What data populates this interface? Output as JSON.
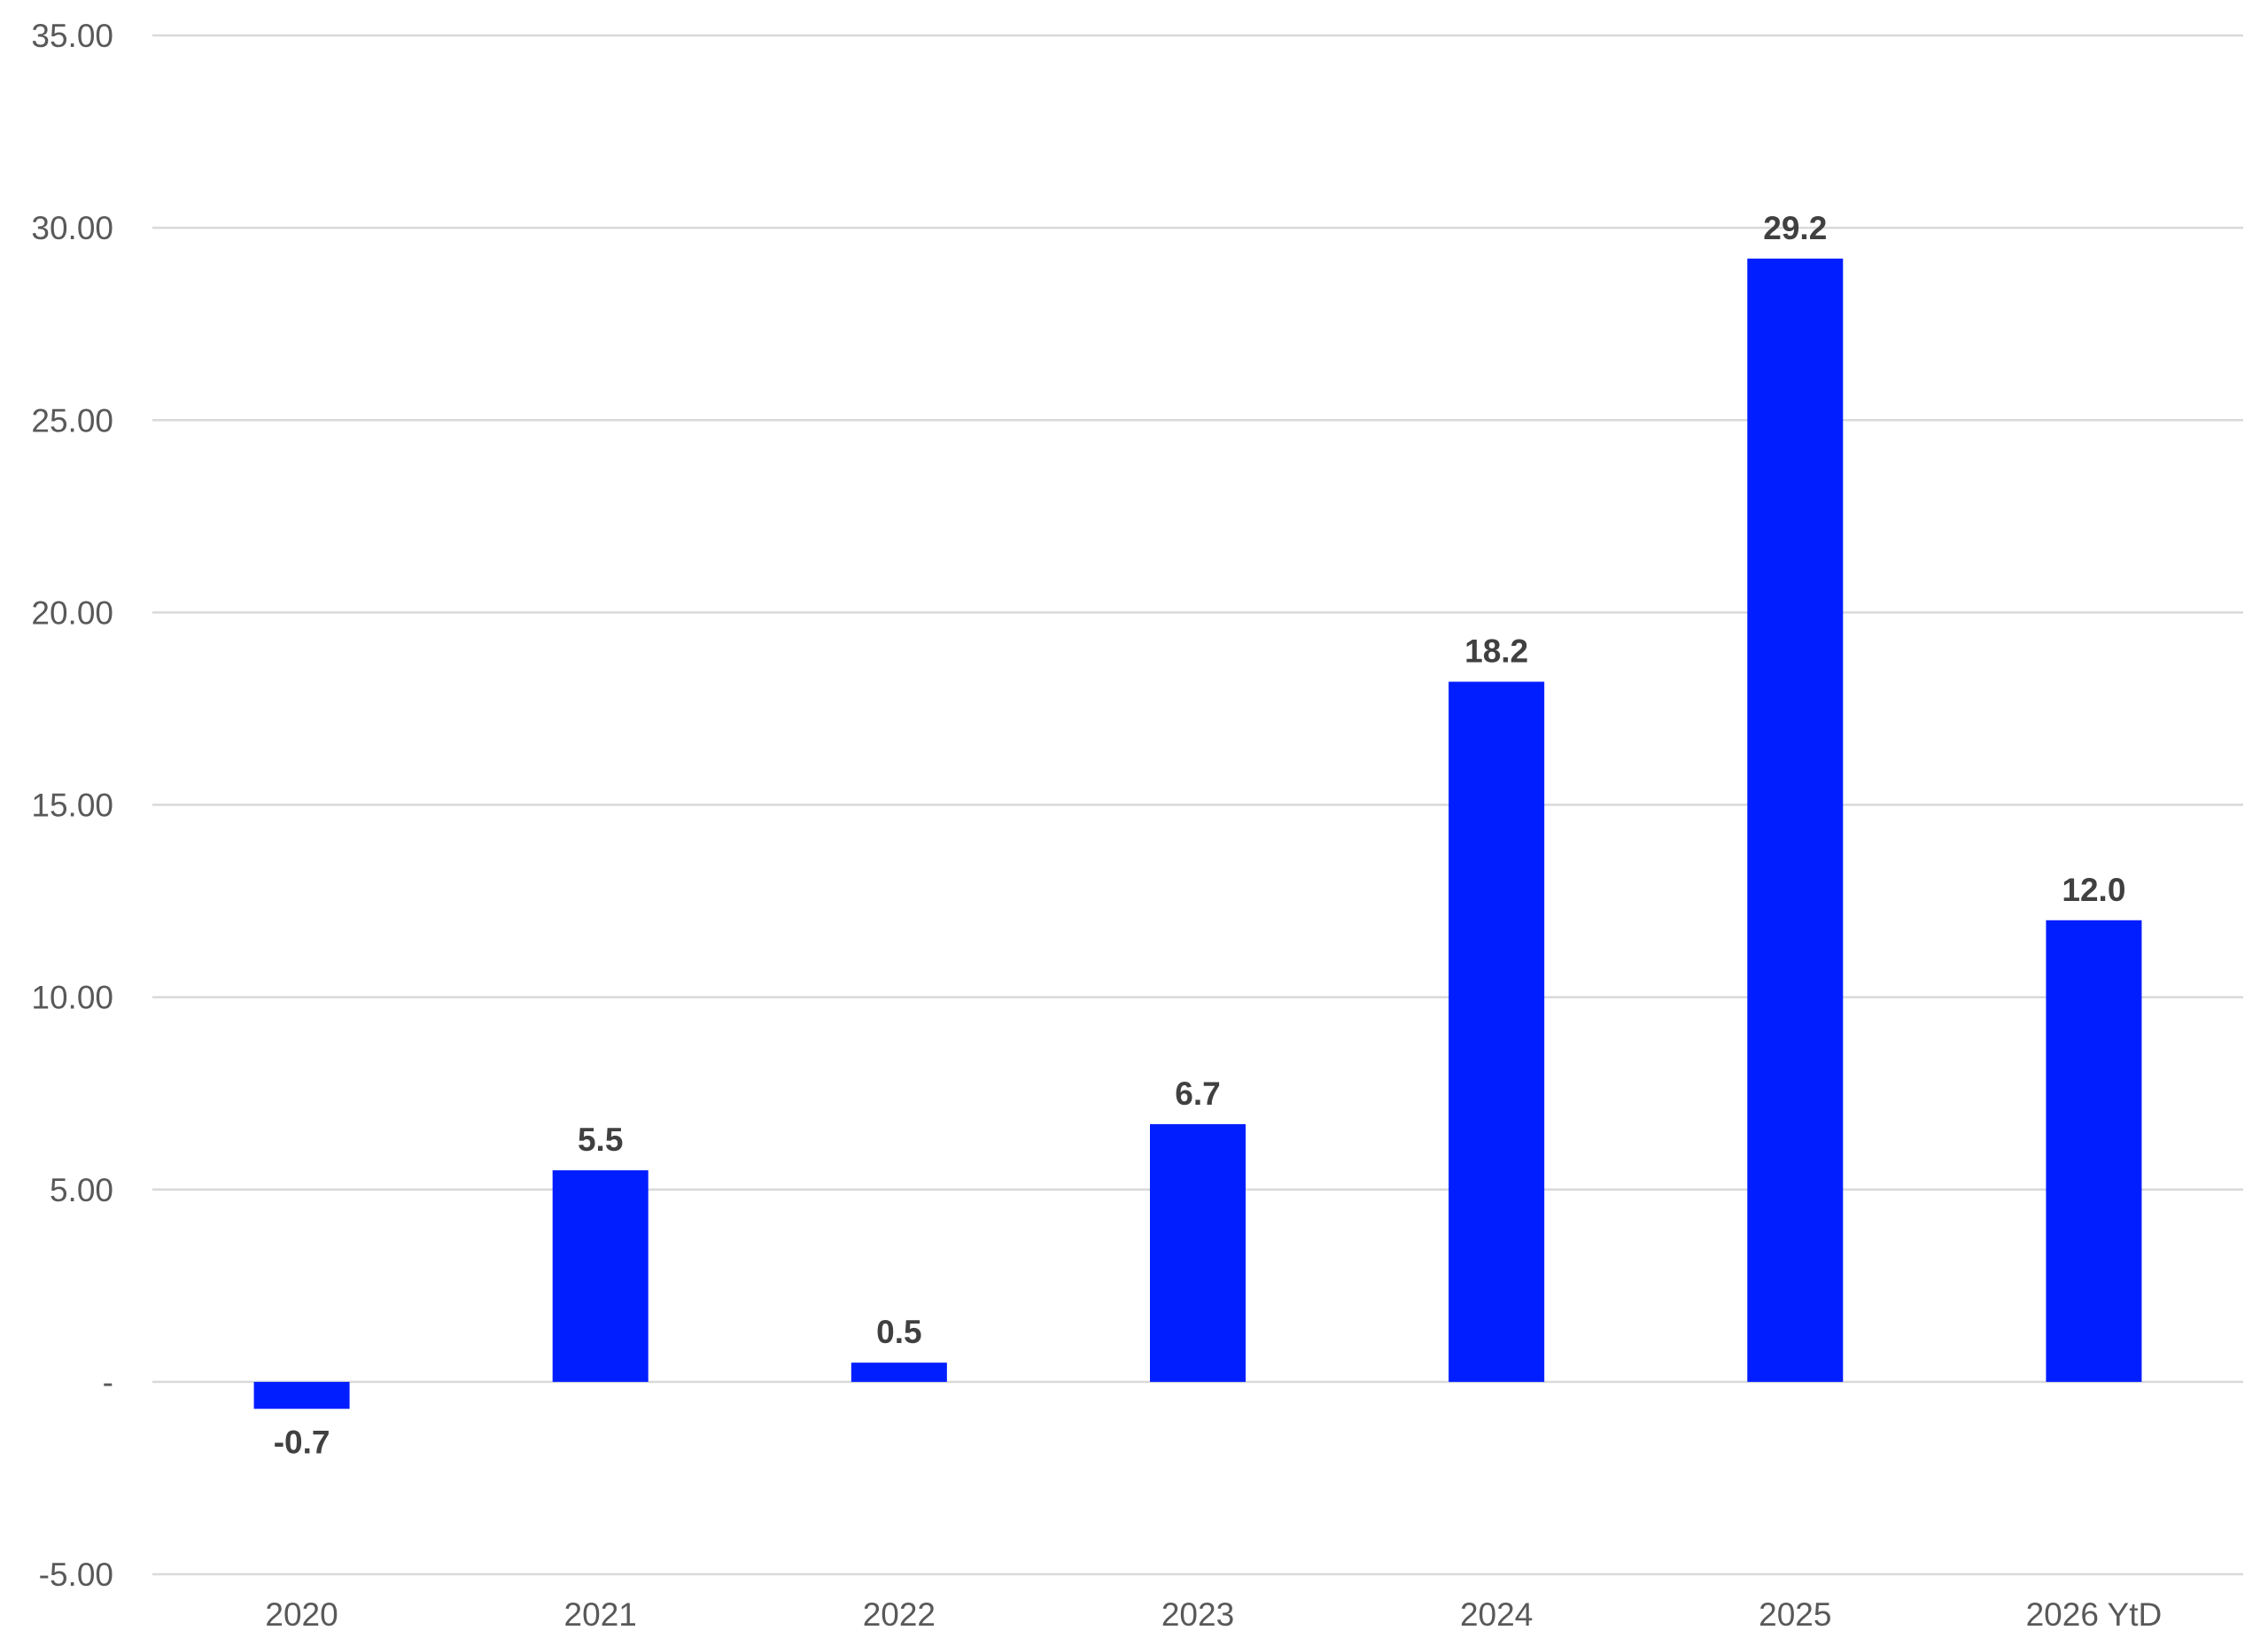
{
  "chart_data": {
    "type": "bar",
    "title": "",
    "xlabel": "",
    "ylabel": "",
    "categories": [
      "2020",
      "2021",
      "2022",
      "2023",
      "2024",
      "2025",
      "2026 YtD"
    ],
    "values": [
      -0.7,
      5.5,
      0.5,
      6.7,
      18.2,
      29.2,
      12.0
    ],
    "data_labels": [
      "-0.7",
      "5.5",
      "0.5",
      "6.7",
      "18.2",
      "29.2",
      "12.0"
    ],
    "ylim": [
      -5,
      35
    ],
    "y_ticks": [
      {
        "value": 35,
        "label": "35.00"
      },
      {
        "value": 30,
        "label": "30.00"
      },
      {
        "value": 25,
        "label": "25.00"
      },
      {
        "value": 20,
        "label": "20.00"
      },
      {
        "value": 15,
        "label": "15.00"
      },
      {
        "value": 10,
        "label": "10.00"
      },
      {
        "value": 5,
        "label": "5.00"
      },
      {
        "value": 0,
        "label": "-"
      },
      {
        "value": -5,
        "label": "-5.00"
      }
    ],
    "grid": true,
    "legend": "none",
    "bar_color": "#001EFF"
  }
}
